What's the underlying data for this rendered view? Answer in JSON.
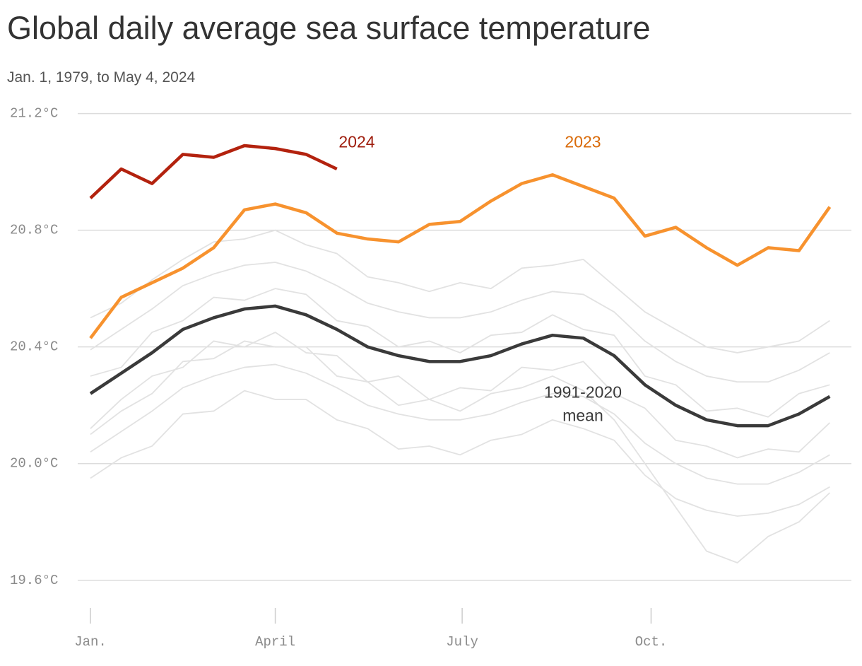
{
  "chart_data": {
    "type": "line",
    "title": "Global daily average sea surface temperature",
    "subtitle": "Jan. 1, 1979, to May 4, 2024",
    "x": [
      1,
      16,
      31,
      46,
      61,
      76,
      91,
      106,
      121,
      136,
      151,
      166,
      181,
      196,
      211,
      226,
      241,
      256,
      271,
      286,
      301,
      316,
      331,
      346,
      361
    ],
    "xlim": [
      1,
      365
    ],
    "xticks": [
      {
        "value": 1,
        "label": "Jan."
      },
      {
        "value": 91,
        "label": "April"
      },
      {
        "value": 182,
        "label": "July"
      },
      {
        "value": 274,
        "label": "Oct."
      }
    ],
    "ylim": [
      19.5,
      21.25
    ],
    "yticks": [
      {
        "value": 19.6,
        "label": "19.6°C"
      },
      {
        "value": 20.0,
        "label": "20.0°C"
      },
      {
        "value": 20.4,
        "label": "20.4°C"
      },
      {
        "value": 20.8,
        "label": "20.8°C"
      },
      {
        "value": 21.2,
        "label": "21.2°C"
      }
    ],
    "grid": true,
    "series": [
      {
        "color": "#e2e2e2",
        "values": [
          20.04,
          20.11,
          20.18,
          20.26,
          20.3,
          20.33,
          20.34,
          20.31,
          20.26,
          20.2,
          20.17,
          20.15,
          20.15,
          20.17,
          20.21,
          20.24,
          20.23,
          20.17,
          20.07,
          20.0,
          19.95,
          19.93,
          19.93,
          19.97,
          20.03
        ]
      },
      {
        "color": "#e2e2e2",
        "values": [
          20.39,
          20.46,
          20.53,
          20.61,
          20.65,
          20.68,
          20.69,
          20.66,
          20.61,
          20.55,
          20.52,
          20.5,
          20.5,
          20.52,
          20.56,
          20.59,
          20.58,
          20.52,
          20.42,
          20.35,
          20.3,
          20.28,
          20.28,
          20.32,
          20.38
        ]
      },
      {
        "color": "#e2e2e2",
        "values": [
          20.12,
          20.22,
          20.3,
          20.33,
          20.42,
          20.4,
          20.45,
          20.38,
          20.37,
          20.28,
          20.3,
          20.22,
          20.26,
          20.25,
          20.33,
          20.32,
          20.35,
          20.24,
          20.19,
          20.08,
          20.06,
          20.02,
          20.05,
          20.04,
          20.14
        ]
      },
      {
        "color": "#e2e2e2",
        "values": [
          20.3,
          20.33,
          20.45,
          20.49,
          20.57,
          20.56,
          20.6,
          20.58,
          20.49,
          20.47,
          20.4,
          20.42,
          20.38,
          20.44,
          20.45,
          20.51,
          20.46,
          20.44,
          20.3,
          20.27,
          20.18,
          20.19,
          20.16,
          20.24,
          20.27
        ]
      },
      {
        "color": "#e2e2e2",
        "values": [
          19.95,
          20.02,
          20.06,
          20.17,
          20.18,
          20.25,
          20.22,
          20.22,
          20.15,
          20.12,
          20.05,
          20.06,
          20.03,
          20.08,
          20.1,
          20.15,
          20.12,
          20.08,
          19.96,
          19.88,
          19.84,
          19.82,
          19.83,
          19.86,
          19.92
        ]
      },
      {
        "color": "#e2e2e2",
        "values": [
          20.5,
          20.55,
          20.63,
          20.7,
          20.76,
          20.77,
          20.8,
          20.75,
          20.72,
          20.64,
          20.62,
          20.59,
          20.62,
          20.6,
          20.67,
          20.68,
          20.7,
          20.61,
          20.52,
          20.46,
          20.4,
          20.38,
          20.4,
          20.42,
          20.49
        ]
      },
      {
        "color": "#e2e2e2",
        "values": [
          20.1,
          20.18,
          20.24,
          20.35,
          20.36,
          20.42,
          20.4,
          20.4,
          20.3,
          20.28,
          20.2,
          20.22,
          20.18,
          20.24,
          20.26,
          20.3,
          20.25,
          20.15,
          20.0,
          19.85,
          19.7,
          19.66,
          19.75,
          19.8,
          19.9
        ]
      },
      {
        "name": "1991-2020 mean",
        "color": "#3a3a3a",
        "values": [
          20.24,
          20.31,
          20.38,
          20.46,
          20.5,
          20.53,
          20.54,
          20.51,
          20.46,
          20.4,
          20.37,
          20.35,
          20.35,
          20.37,
          20.41,
          20.44,
          20.43,
          20.37,
          20.27,
          20.2,
          20.15,
          20.13,
          20.13,
          20.17,
          20.23
        ]
      },
      {
        "name": "2023",
        "color": "#f7922e",
        "values": [
          20.43,
          20.57,
          20.62,
          20.67,
          20.74,
          20.87,
          20.89,
          20.86,
          20.79,
          20.77,
          20.76,
          20.82,
          20.83,
          20.9,
          20.96,
          20.99,
          20.95,
          20.91,
          20.78,
          20.81,
          20.74,
          20.68,
          20.74,
          20.73,
          20.88
        ]
      },
      {
        "name": "2024",
        "color": "#b3220e",
        "values": [
          20.91,
          21.01,
          20.96,
          21.06,
          21.05,
          21.09,
          21.08,
          21.06,
          21.01,
          null,
          null,
          null,
          null,
          null,
          null,
          null,
          null,
          null,
          null,
          null,
          null,
          null,
          null,
          null,
          null
        ]
      }
    ]
  }
}
